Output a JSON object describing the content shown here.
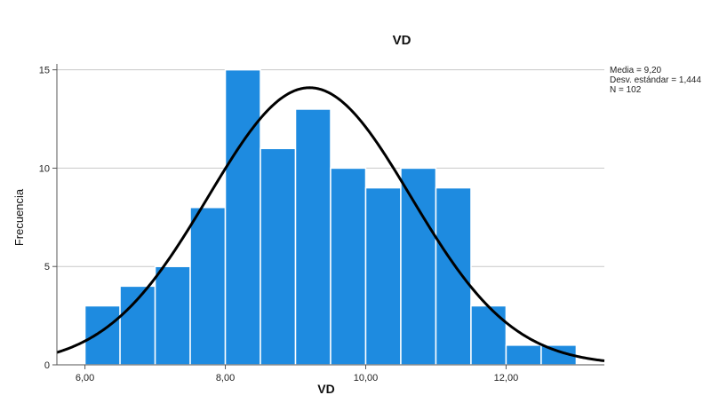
{
  "chart_data": {
    "type": "bar",
    "title": "VD",
    "xlabel": "VD",
    "ylabel": "Frecuencia",
    "bin_width": 0.5,
    "bin_starts": [
      6.0,
      6.5,
      7.0,
      7.5,
      8.0,
      8.5,
      9.0,
      9.5,
      10.0,
      10.5,
      11.0,
      11.5,
      12.0,
      12.5
    ],
    "values": [
      3,
      4,
      5,
      8,
      15,
      11,
      13,
      10,
      9,
      10,
      9,
      3,
      1,
      1
    ],
    "xlim": [
      5.6,
      13.4
    ],
    "ylim": [
      0,
      15.3
    ],
    "xticks": [
      6.0,
      8.0,
      10.0,
      12.0
    ],
    "xtick_labels": [
      "6,00",
      "8,00",
      "10,00",
      "12,00"
    ],
    "yticks": [
      0,
      5,
      10,
      15
    ],
    "ytick_labels": [
      "0",
      "5",
      "10",
      "15"
    ],
    "grid": true,
    "bar_color": "#1E8BE0",
    "curve_color": "#000000",
    "normal_curve": {
      "mean": 9.2,
      "std": 1.444,
      "n": 102
    },
    "stats_legend": {
      "placement": "top-right",
      "lines": [
        "Media = 9,20",
        "Desv. estándar = 1,444",
        "N = 102"
      ]
    }
  }
}
